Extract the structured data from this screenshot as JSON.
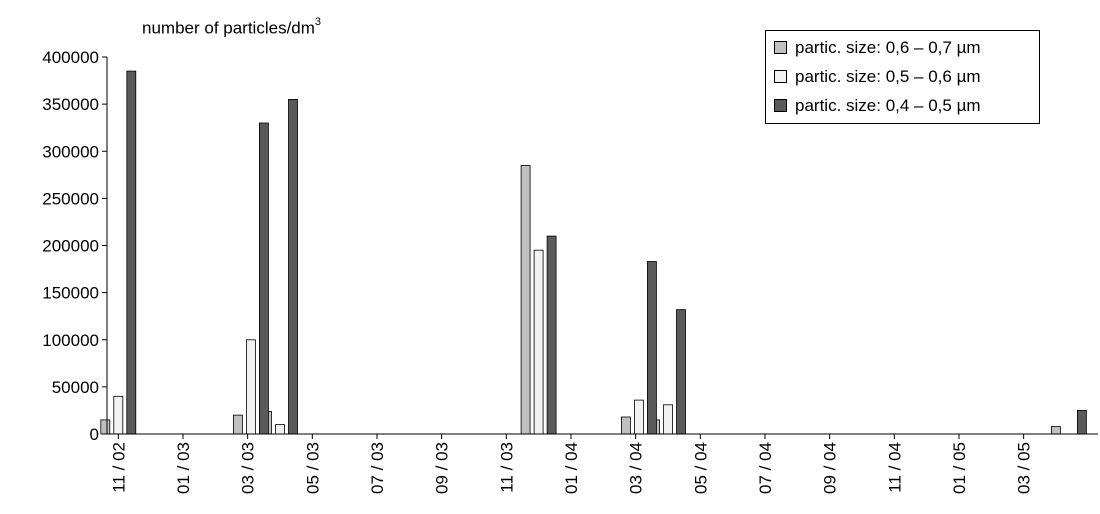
{
  "chart_data": {
    "type": "bar",
    "ylabel": "number of particles/dm",
    "ylabel_superscript": "3",
    "ylim": [
      0,
      400000
    ],
    "yticks": [
      "0",
      "50000",
      "100000",
      "150000",
      "200000",
      "250000",
      "300000",
      "350000",
      "400000"
    ],
    "ytick_values": [
      0,
      50000,
      100000,
      150000,
      200000,
      250000,
      300000,
      350000,
      400000
    ],
    "xaxis": {
      "tick_labels": [
        "11 / 02",
        "01 / 03",
        "03 / 03",
        "05 / 03",
        "07 / 03",
        "09 / 03",
        "11 / 03",
        "01 / 04",
        "03 / 04",
        "05 / 04",
        "07 / 04",
        "09 / 04",
        "11 / 04",
        "01 / 05",
        "03 / 05"
      ],
      "tick_months": [
        0,
        2,
        4,
        6,
        8,
        10,
        12,
        14,
        16,
        18,
        20,
        22,
        24,
        26,
        28
      ],
      "range_months": [
        -0.35,
        30.3
      ]
    },
    "legend_position": "top-right",
    "series": [
      {
        "name": "partic. size:  0,6 – 0,7 µm",
        "color": "#c0c0c0",
        "points": [
          {
            "month": 0.0,
            "value": 15000
          },
          {
            "month": 4.1,
            "value": 20000
          },
          {
            "month": 5.0,
            "value": 24000
          },
          {
            "month": 13.0,
            "value": 285000
          },
          {
            "month": 16.1,
            "value": 18000
          },
          {
            "month": 17.0,
            "value": 15000
          },
          {
            "month": 29.4,
            "value": 8000
          }
        ]
      },
      {
        "name": "partic. size:  0,5 – 0,6 µm",
        "color": "#f2f2f2",
        "points": [
          {
            "month": 0.0,
            "value": 40000
          },
          {
            "month": 4.1,
            "value": 100000
          },
          {
            "month": 5.0,
            "value": 10000
          },
          {
            "month": 13.0,
            "value": 195000
          },
          {
            "month": 16.1,
            "value": 36000
          },
          {
            "month": 17.0,
            "value": 31000
          }
        ]
      },
      {
        "name": "partic. size:  0,4 – 0,5 µm",
        "color": "#5a5a5a",
        "points": [
          {
            "month": 0.0,
            "value": 385000
          },
          {
            "month": 4.1,
            "value": 330000
          },
          {
            "month": 5.0,
            "value": 355000
          },
          {
            "month": 13.0,
            "value": 210000
          },
          {
            "month": 16.1,
            "value": 183000
          },
          {
            "month": 17.0,
            "value": 132000
          },
          {
            "month": 29.4,
            "value": 25000
          }
        ]
      }
    ]
  }
}
